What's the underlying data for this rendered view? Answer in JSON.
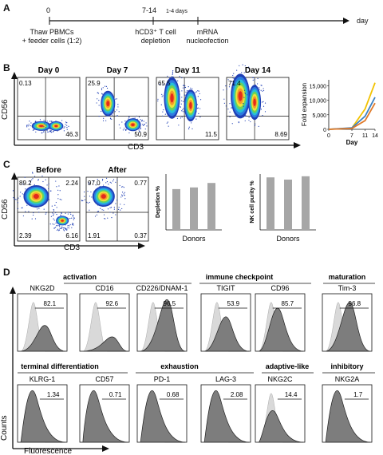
{
  "panels": {
    "A": "A",
    "B": "B",
    "C": "C",
    "D": "D"
  },
  "timeline": {
    "t0": "0",
    "t1": "7-14",
    "t2": "1-4 days",
    "day": "day",
    "step1": "Thaw PBMCs",
    "step1b": "+ feeder cells (1:2)",
    "step2": "hCD3⁺ T cell",
    "step2b": "depletion",
    "step3": "mRNA",
    "step3b": "nucleofection"
  },
  "panelB": {
    "plots": [
      {
        "title": "Day 0",
        "ul": "0.13",
        "lr": "46.3"
      },
      {
        "title": "Day 7",
        "ul": "25.9",
        "lr": "50.9"
      },
      {
        "title": "Day 11",
        "ul": "65.5",
        "lr": "11.5"
      },
      {
        "title": "Day 14",
        "ul": "71.4",
        "lr": "8.69"
      }
    ],
    "xaxis": "CD3",
    "yaxis": "CD56"
  },
  "chart_data": [
    {
      "type": "line",
      "ylabel": "Fold expansion",
      "xlabel": "Day",
      "x": [
        0,
        7,
        11,
        14
      ],
      "xticks": [
        "0",
        "7",
        "11",
        "14"
      ],
      "yticks": [
        "0",
        "5,000",
        "10,000",
        "15,000"
      ],
      "ylim": [
        0,
        17000
      ],
      "series": [
        {
          "values": [
            0,
            400,
            7000,
            16000
          ],
          "color": "#f2c200"
        },
        {
          "values": [
            0,
            500,
            4500,
            11000
          ],
          "color": "#3b82c4"
        },
        {
          "values": [
            0,
            300,
            3000,
            9000
          ],
          "color": "#e07a2a"
        }
      ]
    },
    {
      "type": "bar",
      "ylabel": "Depletion %",
      "xlabel": "Donors",
      "values": [
        73,
        76,
        84
      ],
      "ylim": [
        0,
        100
      ]
    },
    {
      "type": "bar",
      "ylabel": "NK cell purity %",
      "xlabel": "Donors",
      "values": [
        94,
        90,
        96
      ],
      "ylim": [
        0,
        100
      ]
    }
  ],
  "panelC": {
    "before": {
      "title": "Before",
      "ul": "89.2",
      "ur": "2.24",
      "ll": "2.39",
      "lr": "6.16"
    },
    "after": {
      "title": "After",
      "ul": "97.0",
      "ur": "0.77",
      "ll": "1.91",
      "lr": "0.37"
    },
    "xaxis": "CD3",
    "yaxis": "CD56"
  },
  "panelD": {
    "groups_row1": [
      {
        "label": "activation"
      },
      {
        "label": "immune checkpoint"
      },
      {
        "label": "maturation"
      }
    ],
    "groups_row2": [
      {
        "label": "terminal differentiation"
      },
      {
        "label": "exhaustion"
      },
      {
        "label": "adaptive-like"
      },
      {
        "label": "inhibitory"
      }
    ],
    "row1": [
      {
        "marker": "NKG2D",
        "pct": "82.1"
      },
      {
        "marker": "CD16",
        "pct": "92.6"
      },
      {
        "marker": "CD226/DNAM-1",
        "pct": "96.5"
      },
      {
        "marker": "TIGIT",
        "pct": "53.9"
      },
      {
        "marker": "CD96",
        "pct": "85.7"
      },
      {
        "marker": "Tim-3",
        "pct": "96.8"
      }
    ],
    "row2": [
      {
        "marker": "KLRG-1",
        "pct": "1.34"
      },
      {
        "marker": "CD57",
        "pct": "0.71"
      },
      {
        "marker": "PD-1",
        "pct": "0.68"
      },
      {
        "marker": "LAG-3",
        "pct": "2.08"
      },
      {
        "marker": "NKG2C",
        "pct": "14.4"
      },
      {
        "marker": "NKG2A",
        "pct": "1.7"
      }
    ],
    "xaxis": "Fluorescence",
    "yaxis": "Counts"
  },
  "colors": {
    "gray_fill": "#7d7d7d",
    "light_fill": "#d9d9d9",
    "bar": "#a6a6a6"
  }
}
